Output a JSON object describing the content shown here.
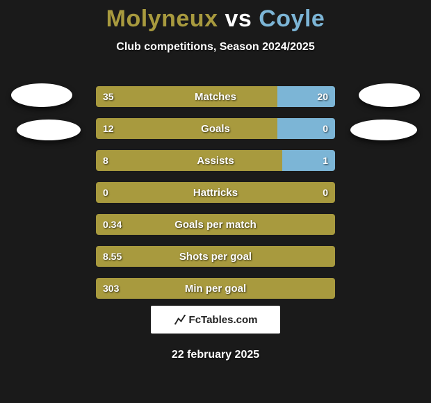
{
  "title": {
    "player1": "Molyneux",
    "vs": "vs",
    "player2": "Coyle"
  },
  "subtitle": "Club competitions, Season 2024/2025",
  "colors": {
    "player1": "#a89a3e",
    "player2": "#7cb5d6",
    "bar_bg": "#33331f",
    "page_bg": "#1a1a1a",
    "text": "#ffffff"
  },
  "stats": [
    {
      "label": "Matches",
      "left_val": "35",
      "right_val": "20",
      "left_pct": 76,
      "right_pct": 24
    },
    {
      "label": "Goals",
      "left_val": "12",
      "right_val": "0",
      "left_pct": 76,
      "right_pct": 24
    },
    {
      "label": "Assists",
      "left_val": "8",
      "right_val": "1",
      "left_pct": 78,
      "right_pct": 22
    },
    {
      "label": "Hattricks",
      "left_val": "0",
      "right_val": "0",
      "left_pct": 100,
      "right_pct": 0
    },
    {
      "label": "Goals per match",
      "left_val": "0.34",
      "right_val": "",
      "left_pct": 100,
      "right_pct": 0
    },
    {
      "label": "Shots per goal",
      "left_val": "8.55",
      "right_val": "",
      "left_pct": 100,
      "right_pct": 0
    },
    {
      "label": "Min per goal",
      "left_val": "303",
      "right_val": "",
      "left_pct": 100,
      "right_pct": 0
    }
  ],
  "brand": "FcTables.com",
  "date": "22 february 2025"
}
